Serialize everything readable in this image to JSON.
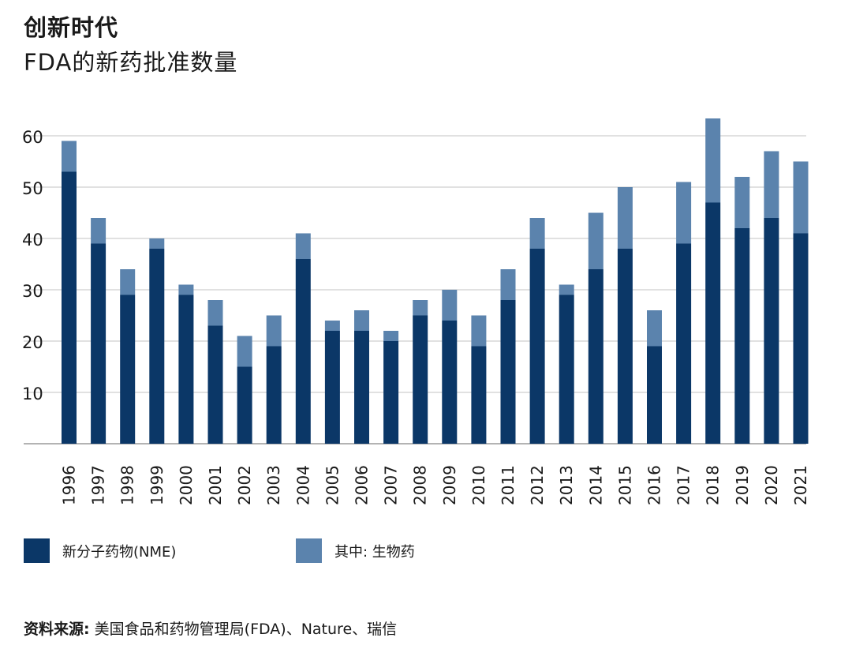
{
  "header": {
    "title": "创新时代",
    "subtitle": "FDA的新药批准数量"
  },
  "legend": [
    {
      "label": "新分子药物(NME)",
      "color": "#0b3767"
    },
    {
      "label": "其中: 生物药",
      "color": "#5b83ad"
    }
  ],
  "source": {
    "label": "资料来源:",
    "text": "美国食品和药物管理局(FDA)、Nature、瑞信"
  },
  "chart_data": {
    "type": "bar",
    "stacked": true,
    "categories": [
      "1996",
      "1997",
      "1998",
      "1999",
      "2000",
      "2001",
      "2002",
      "2003",
      "2004",
      "2005",
      "2006",
      "2007",
      "2008",
      "2009",
      "2010",
      "2011",
      "2012",
      "2013",
      "2014",
      "2015",
      "2016",
      "2017",
      "2018",
      "2019",
      "2020",
      "2021"
    ],
    "series": [
      {
        "name": "新分子药物(NME)",
        "color": "#0b3767",
        "values": [
          53,
          39,
          29,
          38,
          29,
          23,
          15,
          19,
          36,
          22,
          22,
          20,
          25,
          24,
          19,
          28,
          38,
          29,
          34,
          38,
          19,
          39,
          47,
          42,
          44,
          41
        ]
      },
      {
        "name": "其中: 生物药",
        "color": "#5b83ad",
        "values": [
          6,
          5,
          5,
          2,
          2,
          5,
          6,
          6,
          5,
          2,
          4,
          2,
          3,
          6,
          6,
          6,
          6,
          2,
          11,
          12,
          7,
          12,
          17,
          10,
          13,
          14
        ]
      }
    ],
    "yticks": [
      10,
      20,
      30,
      40,
      50,
      60
    ],
    "ylim": [
      0,
      60
    ],
    "grid": true,
    "legend_position": "bottom-left"
  }
}
